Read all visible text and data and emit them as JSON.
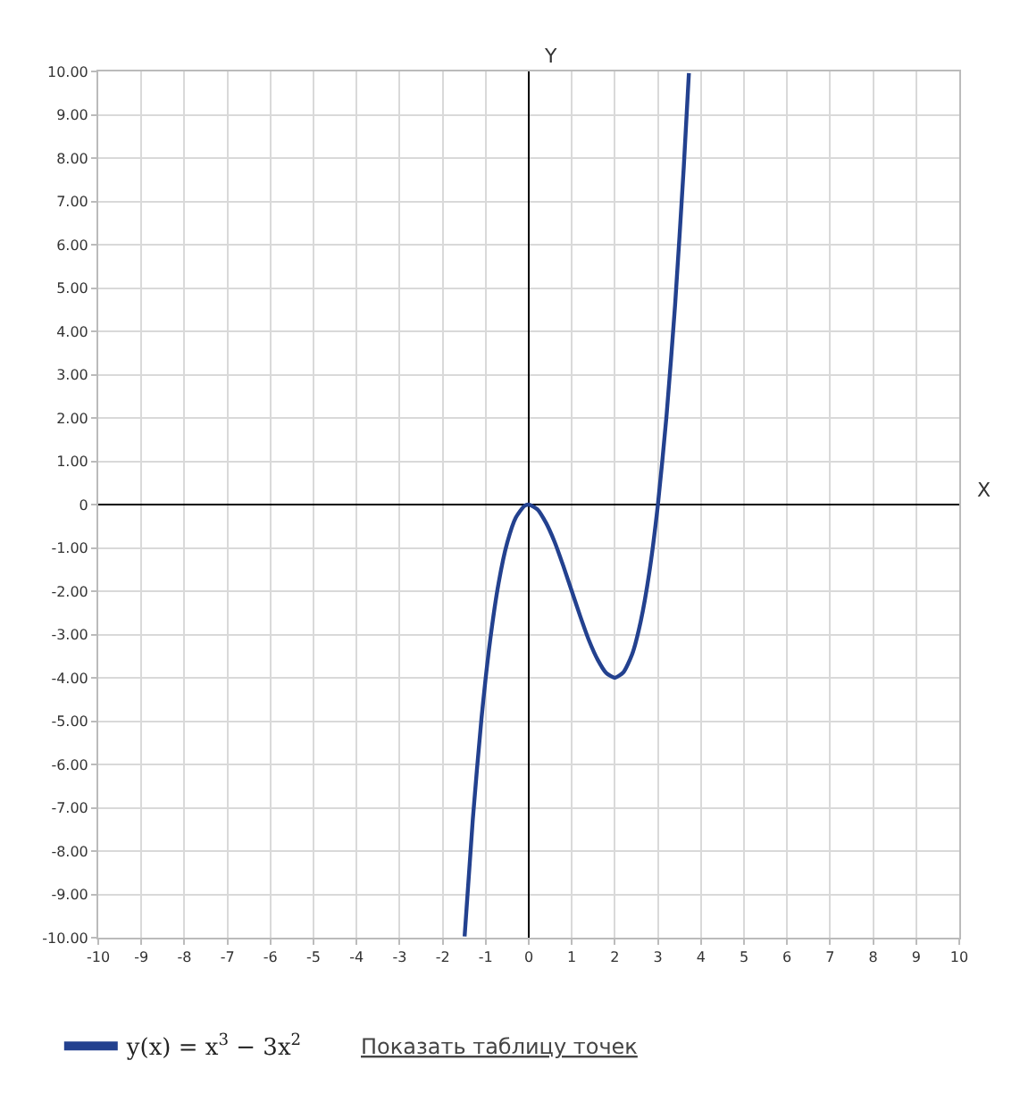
{
  "chart_data": {
    "type": "line",
    "xlabel": "X",
    "ylabel": "Y",
    "x": [
      -1.49,
      -1.3,
      -1.1,
      -0.9,
      -0.7,
      -0.5,
      -0.3,
      -0.1,
      0,
      0.2,
      0.4,
      0.6,
      0.8,
      1.0,
      1.2,
      1.4,
      1.6,
      1.8,
      2.0,
      2.2,
      2.4,
      2.6,
      2.8,
      3.0,
      3.2,
      3.4,
      3.6,
      3.72
    ],
    "series": [
      {
        "name": "y(x) = x$^{3}$ − 3x$^{2}$",
        "color": "#23418f",
        "values": [
          -9.97,
          -7.27,
          -4.96,
          -3.16,
          -1.81,
          -0.88,
          -0.3,
          -0.03,
          0,
          -0.11,
          -0.42,
          -0.86,
          -1.41,
          -2,
          -2.59,
          -3.14,
          -3.58,
          -3.89,
          -4,
          -3.87,
          -3.46,
          -2.7,
          -1.57,
          0,
          2.05,
          4.62,
          7.78,
          9.96
        ]
      }
    ],
    "xlim": [
      -10,
      10
    ],
    "xticks": [
      -10,
      -9,
      -8,
      -7,
      -6,
      -5,
      -4,
      -3,
      -2,
      -1,
      0,
      1,
      2,
      3,
      4,
      5,
      6,
      7,
      8,
      9,
      10
    ],
    "ylim": [
      -10,
      10
    ],
    "yticks": [
      {
        "value": -10,
        "label": "-10.00"
      },
      {
        "value": -9,
        "label": "-9.00"
      },
      {
        "value": -8,
        "label": "-8.00"
      },
      {
        "value": -7,
        "label": "-7.00"
      },
      {
        "value": -6,
        "label": "-6.00"
      },
      {
        "value": -5,
        "label": "-5.00"
      },
      {
        "value": -4,
        "label": "-4.00"
      },
      {
        "value": -3,
        "label": "-3.00"
      },
      {
        "value": -2,
        "label": "-2.00"
      },
      {
        "value": -1,
        "label": "-1.00"
      },
      0,
      {
        "value": 1,
        "label": "1.00"
      },
      {
        "value": 2,
        "label": "2.00"
      },
      {
        "value": 3,
        "label": "3.00"
      },
      {
        "value": 4,
        "label": "4.00"
      },
      {
        "value": 5,
        "label": "5.00"
      },
      {
        "value": 6,
        "label": "6.00"
      },
      {
        "value": 7,
        "label": "7.00"
      },
      {
        "value": 8,
        "label": "8.00"
      },
      {
        "value": 9,
        "label": "9.00"
      },
      {
        "value": 10,
        "label": "10.00"
      }
    ],
    "grid": true,
    "legend": "bottom",
    "marker": "none",
    "line_style": "solid",
    "annotations": [
      "Показать таблицу точек"
    ]
  }
}
